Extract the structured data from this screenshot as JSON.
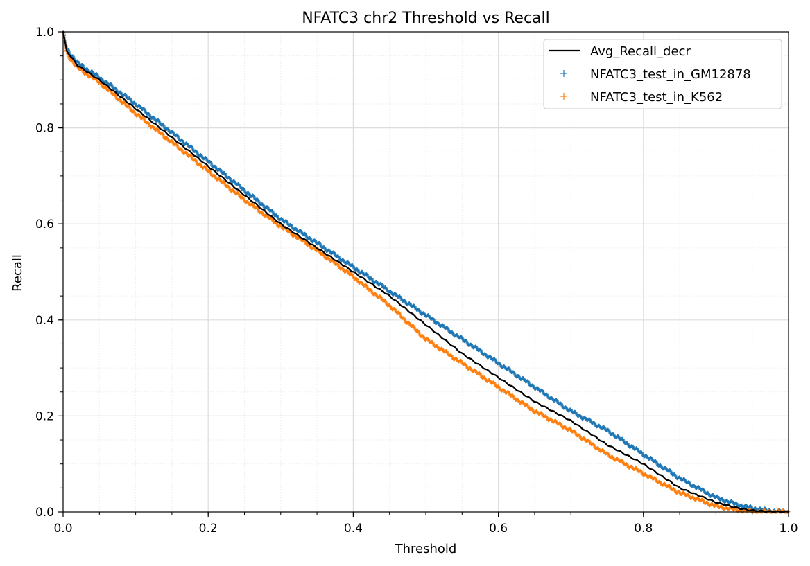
{
  "chart_data": {
    "type": "line",
    "title": "NFATC3 chr2 Threshold vs Recall",
    "xlabel": "Threshold",
    "ylabel": "Recall",
    "xlim": [
      0,
      1
    ],
    "ylim": [
      0,
      1
    ],
    "x_ticks": [
      0.0,
      0.2,
      0.4,
      0.6,
      0.8,
      1.0
    ],
    "y_ticks": [
      0.0,
      0.2,
      0.4,
      0.6,
      0.8,
      1.0
    ],
    "x_tick_labels": [
      "0.0",
      "0.2",
      "0.4",
      "0.6",
      "0.8",
      "1.0"
    ],
    "y_tick_labels": [
      "0.0",
      "0.2",
      "0.4",
      "0.6",
      "0.8",
      "1.0"
    ],
    "grid": true,
    "minor_grid": true,
    "legend_position": "top-right",
    "series": [
      {
        "name": "Avg_Recall_decr",
        "kind": "line",
        "color": "#000000",
        "x": [
          0.0,
          0.005,
          0.01,
          0.02,
          0.05,
          0.1,
          0.15,
          0.2,
          0.25,
          0.3,
          0.35,
          0.4,
          0.45,
          0.5,
          0.55,
          0.6,
          0.65,
          0.7,
          0.75,
          0.8,
          0.85,
          0.9,
          0.93,
          0.95,
          0.97,
          1.0
        ],
        "y": [
          1.0,
          0.96,
          0.95,
          0.93,
          0.9,
          0.84,
          0.78,
          0.72,
          0.66,
          0.6,
          0.55,
          0.5,
          0.45,
          0.39,
          0.33,
          0.28,
          0.23,
          0.19,
          0.14,
          0.1,
          0.05,
          0.02,
          0.008,
          0.003,
          0.001,
          0.0
        ]
      },
      {
        "name": "NFATC3_test_in_GM12878",
        "kind": "scatter",
        "marker": "+",
        "color": "#1f77b4",
        "x": [
          0.0,
          0.005,
          0.01,
          0.02,
          0.05,
          0.1,
          0.15,
          0.2,
          0.25,
          0.3,
          0.35,
          0.4,
          0.45,
          0.5,
          0.55,
          0.6,
          0.65,
          0.7,
          0.75,
          0.8,
          0.85,
          0.9,
          0.93,
          0.95,
          0.97,
          1.0
        ],
        "y": [
          1.0,
          0.965,
          0.955,
          0.935,
          0.905,
          0.85,
          0.79,
          0.73,
          0.67,
          0.61,
          0.56,
          0.51,
          0.46,
          0.41,
          0.36,
          0.31,
          0.26,
          0.21,
          0.17,
          0.12,
          0.07,
          0.03,
          0.015,
          0.008,
          0.003,
          0.0
        ]
      },
      {
        "name": "NFATC3_test_in_K562",
        "kind": "scatter",
        "marker": "+",
        "color": "#ff7f0e",
        "x": [
          0.0,
          0.005,
          0.01,
          0.02,
          0.05,
          0.1,
          0.15,
          0.2,
          0.25,
          0.3,
          0.35,
          0.4,
          0.45,
          0.5,
          0.55,
          0.6,
          0.65,
          0.7,
          0.75,
          0.8,
          0.85,
          0.9,
          0.93,
          0.95,
          0.97,
          1.0
        ],
        "y": [
          1.0,
          0.955,
          0.945,
          0.925,
          0.895,
          0.83,
          0.77,
          0.71,
          0.65,
          0.595,
          0.545,
          0.49,
          0.43,
          0.36,
          0.31,
          0.26,
          0.21,
          0.17,
          0.12,
          0.08,
          0.04,
          0.012,
          0.004,
          0.001,
          0.0,
          0.0
        ]
      }
    ]
  }
}
